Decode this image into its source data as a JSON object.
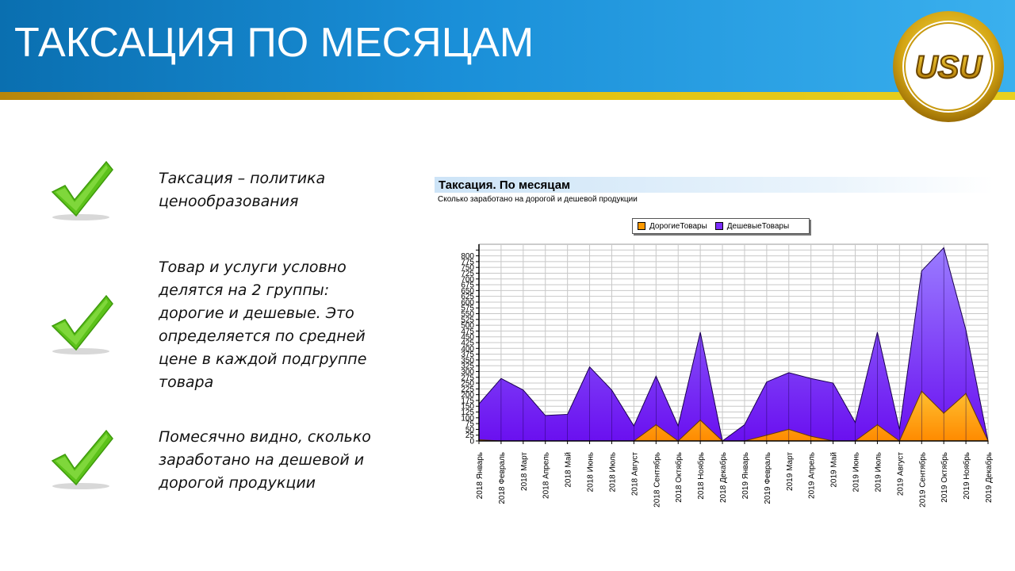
{
  "slide": {
    "title": "ТАКСАЦИЯ ПО МЕСЯЦАМ",
    "logo_text": "USU"
  },
  "bullets": [
    {
      "icon": "checkmark-icon",
      "text": "Таксация – политика ценообразования"
    },
    {
      "icon": "checkmark-icon",
      "text": "Товар и услуги условно делятся на 2 группы: дорогие и дешевые. Это определяется по средней цене в каждой подгруппе товара"
    },
    {
      "icon": "checkmark-icon",
      "text": "Помесячно видно, сколько заработано на дешевой и дорогой продукции"
    }
  ],
  "colors": {
    "header_blue": "#1a8fd8",
    "stripe_gold": "#d4b020",
    "check_green": "#5cc21a",
    "expensive": "#ff9a00",
    "cheap": "#7b2cff"
  },
  "chart_data": {
    "type": "area",
    "title": "Таксация. По месяцам",
    "subtitle": "Сколько заработано на дорогой и дешевой продукции",
    "legend_position": "top-center",
    "grid": true,
    "ylim": [
      0,
      850
    ],
    "yticks": [
      0,
      25,
      50,
      75,
      100,
      125,
      150,
      175,
      200,
      225,
      250,
      275,
      300,
      325,
      350,
      375,
      400,
      425,
      450,
      475,
      500,
      525,
      550,
      575,
      600,
      625,
      650,
      675,
      700,
      725,
      750,
      775,
      800,
      825
    ],
    "ytick_labels": [
      "0",
      "25",
      "50",
      "75",
      "100",
      "125",
      "150",
      "175",
      "200",
      "225",
      "250",
      "275",
      "300",
      "325",
      "350",
      "375",
      "400",
      "425",
      "450",
      "475",
      "500",
      "525",
      "550",
      "575",
      "600",
      "625",
      "650",
      "675",
      "700",
      "725",
      "750",
      "775",
      "800",
      ""
    ],
    "categories": [
      "2018 Январь",
      "2018 Февраль",
      "2018 Март",
      "2018 Апрель",
      "2018 Май",
      "2018 Июнь",
      "2018 Июль",
      "2018 Август",
      "2018 Сентябрь",
      "2018 Октябрь",
      "2018 Ноябрь",
      "2018 Декабрь",
      "2019 Январь",
      "2019 Февраль",
      "2019 Март",
      "2019 Апрель",
      "2019 Май",
      "2019 Июнь",
      "2019 Июль",
      "2019 Август",
      "2019 Сентябрь",
      "2019 Октябрь",
      "2019 Ноябрь",
      "2019 Декабрь"
    ],
    "series": [
      {
        "name": "ДорогиеТовары",
        "color": "#ff9a00",
        "values": [
          5,
          0,
          0,
          0,
          0,
          0,
          0,
          0,
          70,
          0,
          90,
          0,
          0,
          25,
          50,
          20,
          0,
          0,
          70,
          0,
          215,
          120,
          205,
          0
        ]
      },
      {
        "name": "ДешевыеТовары",
        "color": "#7b2cff",
        "values": [
          160,
          270,
          220,
          110,
          115,
          320,
          220,
          65,
          280,
          65,
          470,
          0,
          70,
          255,
          295,
          270,
          250,
          80,
          470,
          50,
          735,
          835,
          480,
          0
        ]
      }
    ]
  }
}
